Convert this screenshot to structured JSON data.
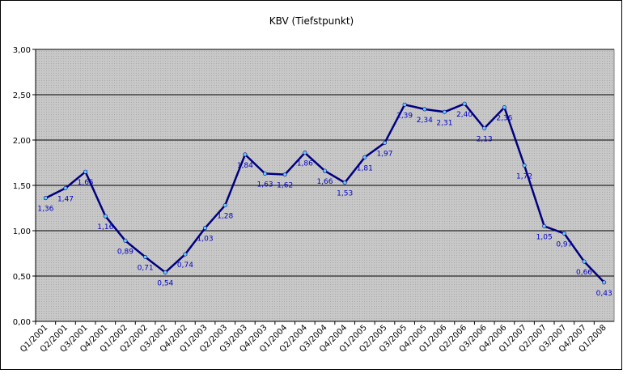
{
  "chart_data": {
    "type": "line",
    "title": "KBV (Tiefstpunkt)",
    "categories": [
      "Q1/2001",
      "Q2/2001",
      "Q3/2001",
      "Q4/2001",
      "Q1/2002",
      "Q2/2002",
      "Q3/2002",
      "Q4/2002",
      "Q1/2003",
      "Q2/2003",
      "Q3/2003",
      "Q4/2003",
      "Q1/2004",
      "Q2/2004",
      "Q3/2004",
      "Q4/2004",
      "Q1/2005",
      "Q2/2005",
      "Q3/2005",
      "Q4/2005",
      "Q1/2006",
      "Q2/2006",
      "Q3/2006",
      "Q4/2006",
      "Q1/2007",
      "Q2/2007",
      "Q3/2007",
      "Q4/2007",
      "Q1/2008"
    ],
    "values": [
      1.36,
      1.47,
      1.65,
      1.16,
      0.89,
      0.71,
      0.54,
      0.74,
      1.03,
      1.28,
      1.84,
      1.63,
      1.62,
      1.86,
      1.66,
      1.53,
      1.81,
      1.97,
      2.39,
      2.34,
      2.31,
      2.4,
      2.13,
      2.36,
      1.72,
      1.05,
      0.97,
      0.66,
      0.43
    ],
    "value_labels": [
      "1,36",
      "1,47",
      "1,65",
      "1,16",
      "0,89",
      "0,71",
      "0,54",
      "0,74",
      "1,03",
      "1,28",
      "1,84",
      "1,63",
      "1,62",
      "1,86",
      "1,66",
      "1,53",
      "1,81",
      "1,97",
      "2,39",
      "2,34",
      "2,31",
      "2,40",
      "2,13",
      "2,36",
      "1,72",
      "1,05",
      "0,97",
      "0,66",
      "0,43"
    ],
    "color": "#000080",
    "marker_color": "#66ccff",
    "label_color": "#0000cc",
    "ylim": [
      0,
      3
    ],
    "yticks": [
      {
        "value": 0,
        "label": "0,00"
      },
      {
        "value": 0.5,
        "label": "0,50"
      },
      {
        "value": 1,
        "label": "1,00"
      },
      {
        "value": 1.5,
        "label": "1,50"
      },
      {
        "value": 2,
        "label": "2,00"
      },
      {
        "value": 2.5,
        "label": "2,50"
      },
      {
        "value": 3,
        "label": "3,00"
      }
    ],
    "grid": true
  }
}
